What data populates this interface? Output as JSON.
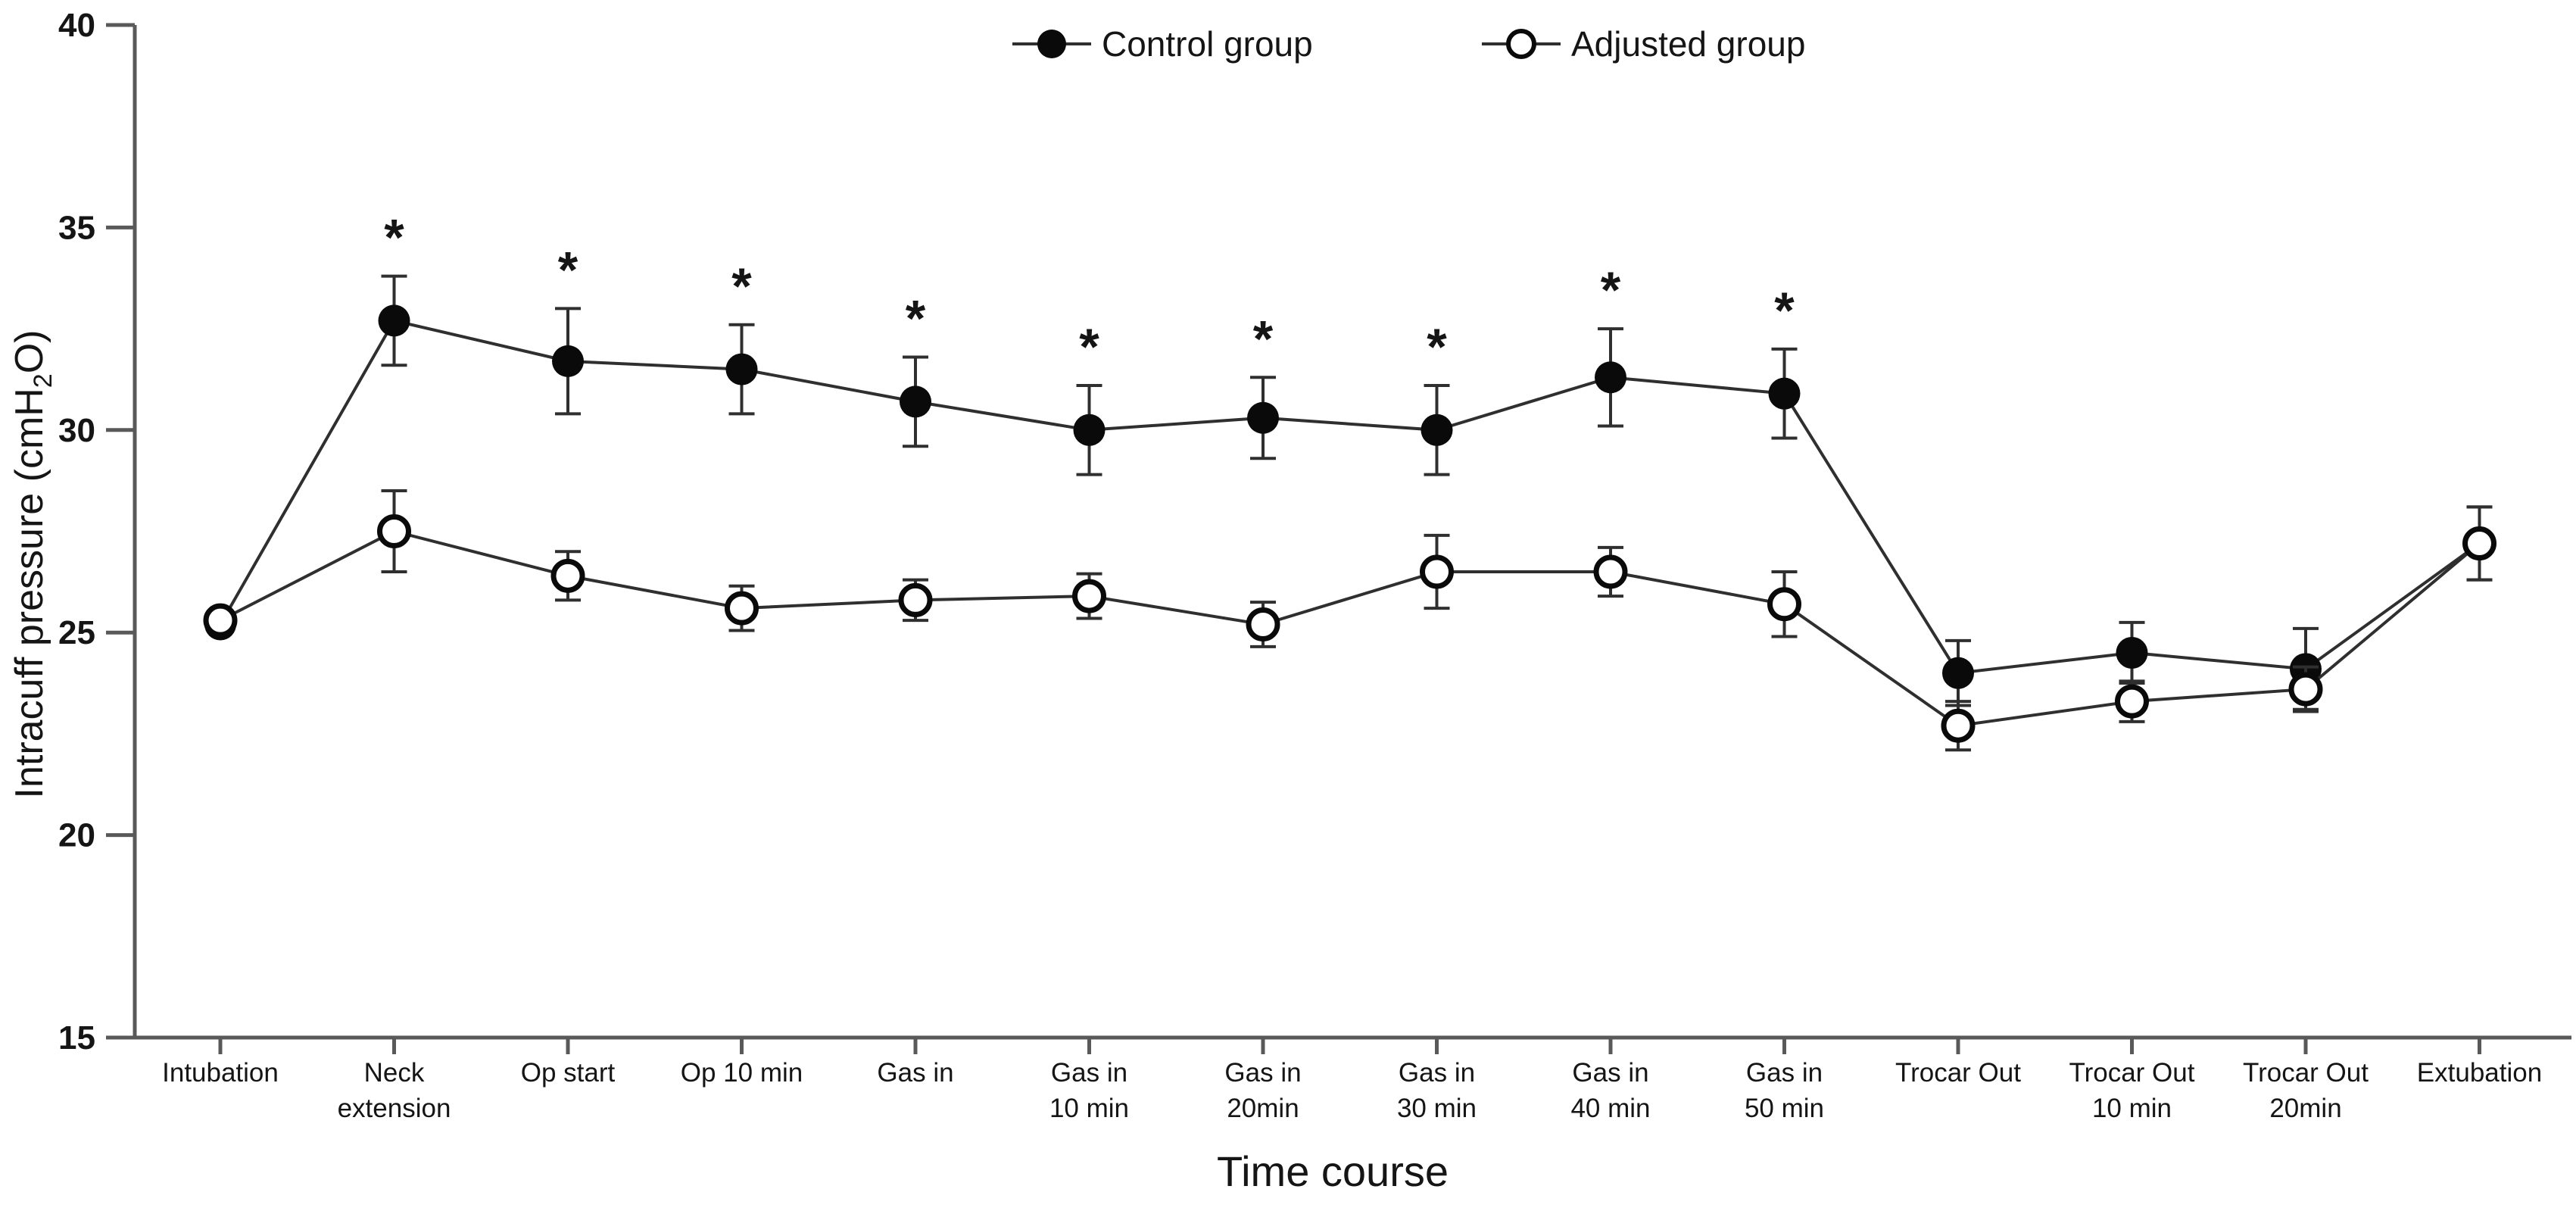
{
  "chart_data": {
    "type": "line",
    "title": "",
    "xlabel": "Time course",
    "ylabel": "Intracuff pressure (cmH2O)",
    "ylabel_rich": [
      {
        "text": "Intracuff pressure (cmH",
        "sub": false
      },
      {
        "text": "2",
        "sub": true
      },
      {
        "text": "O)",
        "sub": false
      }
    ],
    "ylim": [
      15,
      40
    ],
    "yticks": [
      15,
      20,
      25,
      30,
      35,
      40
    ],
    "grid": false,
    "legend_position": "top-center",
    "legend": [
      {
        "label": "Control group",
        "marker": "filled-circle"
      },
      {
        "label": "Adjusted group",
        "marker": "open-circle"
      }
    ],
    "categories": [
      "Intubation",
      "Neck extension",
      "Op start",
      "Op 10 min",
      "Gas in",
      "Gas in 10 min",
      "Gas in 20min",
      "Gas in 30 min",
      "Gas in 40 min",
      "Gas in 50 min",
      "Trocar Out",
      "Trocar Out 10 min",
      "Trocar Out 20min",
      "Extubation"
    ],
    "category_label_lines": [
      [
        "Intubation"
      ],
      [
        "Neck",
        "extension"
      ],
      [
        "Op start"
      ],
      [
        "Op 10 min"
      ],
      [
        "Gas in"
      ],
      [
        "Gas in",
        "10 min"
      ],
      [
        "Gas in",
        "20min"
      ],
      [
        "Gas in",
        "30 min"
      ],
      [
        "Gas in",
        "40 min"
      ],
      [
        "Gas in",
        "50 min"
      ],
      [
        "Trocar Out"
      ],
      [
        "Trocar Out",
        "10 min"
      ],
      [
        "Trocar Out",
        "20min"
      ],
      [
        "Extubation"
      ]
    ],
    "series": [
      {
        "name": "Control group",
        "marker": "filled-circle",
        "values": [
          25.2,
          32.7,
          31.7,
          31.5,
          30.7,
          30.0,
          30.3,
          30.0,
          31.3,
          30.9,
          24.0,
          24.5,
          24.1,
          27.2
        ],
        "errors": [
          0,
          1.1,
          1.3,
          1.1,
          1.1,
          1.1,
          1.0,
          1.1,
          1.2,
          1.1,
          0.8,
          0.75,
          1.0,
          0.9
        ]
      },
      {
        "name": "Adjusted group",
        "marker": "open-circle",
        "values": [
          25.3,
          27.5,
          26.4,
          25.6,
          25.8,
          25.9,
          25.2,
          26.5,
          26.5,
          25.7,
          22.7,
          23.3,
          23.6,
          27.2
        ],
        "errors": [
          0,
          1.0,
          0.6,
          0.55,
          0.5,
          0.55,
          0.55,
          0.9,
          0.6,
          0.8,
          0.6,
          0.5,
          0.55,
          0.9
        ]
      }
    ],
    "significance_marker": "*",
    "significant_category_indices": [
      1,
      2,
      3,
      4,
      5,
      6,
      7,
      8,
      9
    ],
    "colors": {
      "foreground": "#0a0a0a",
      "line": "#2f2f2f",
      "axis": "#595959",
      "background": "#ffffff"
    }
  }
}
